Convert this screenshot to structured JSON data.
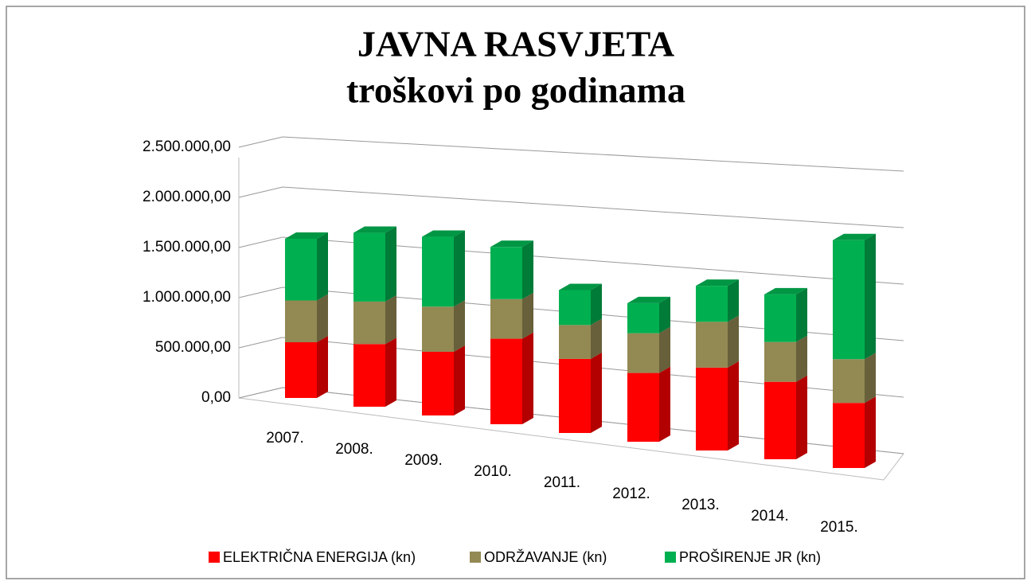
{
  "chart_data": {
    "type": "bar3d_stacked",
    "title": "JAVNA RASVJETA",
    "subtitle": "troškovi po godinama",
    "categories": [
      "2007.",
      "2008.",
      "2009.",
      "2010.",
      "2011.",
      "2012.",
      "2013.",
      "2014.",
      "2015."
    ],
    "series": [
      {
        "name": "ELEKTRIČNA ENERGIJA (kn)",
        "color": "#ff0000",
        "values": [
          560000,
          620000,
          620000,
          820000,
          700000,
          640000,
          760000,
          700000,
          580000
        ]
      },
      {
        "name": "ODRŽAVANJE (kn)",
        "color": "#938953",
        "values": [
          420000,
          420000,
          440000,
          380000,
          320000,
          370000,
          420000,
          360000,
          390000
        ]
      },
      {
        "name": "PROŠIRENJE JR (kn)",
        "color": "#00b050",
        "values": [
          620000,
          680000,
          680000,
          500000,
          330000,
          280000,
          330000,
          430000,
          1060000
        ]
      }
    ],
    "ylim": [
      0,
      2500000
    ],
    "yticks": [
      {
        "value": 0,
        "label": "0,00"
      },
      {
        "value": 500000,
        "label": "500.000,00"
      },
      {
        "value": 1000000,
        "label": "1.000.000,00"
      },
      {
        "value": 1500000,
        "label": "1.500.000,00"
      },
      {
        "value": 2000000,
        "label": "2.000.000,00"
      },
      {
        "value": 2500000,
        "label": "2.500.000,00"
      }
    ],
    "grid": true,
    "legend": "bottom"
  }
}
